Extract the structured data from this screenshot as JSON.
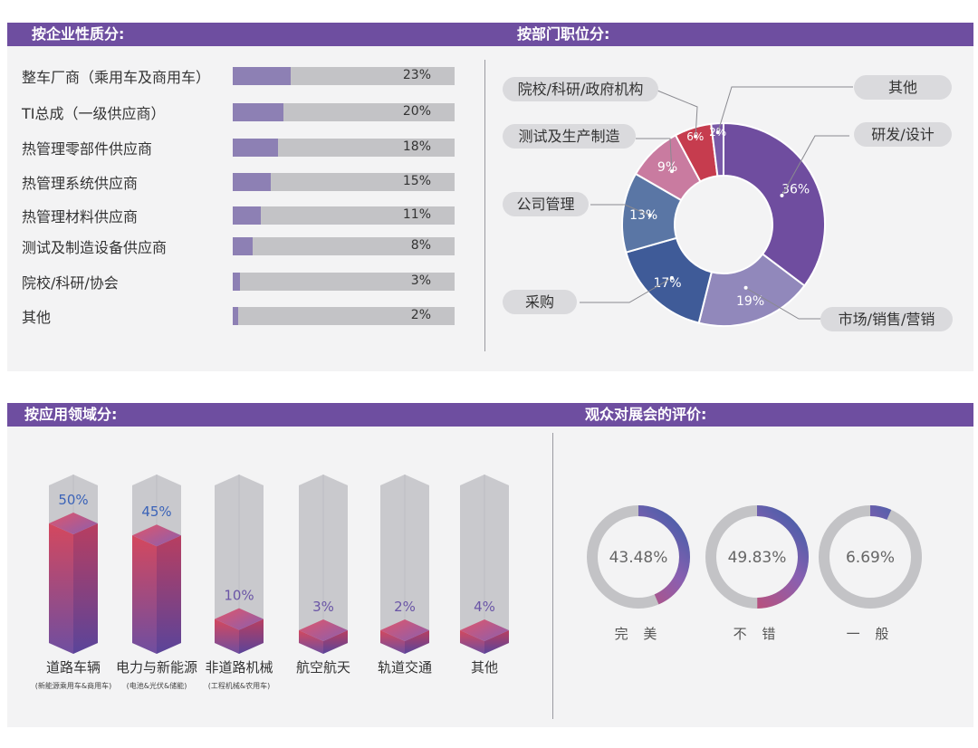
{
  "colors": {
    "header": "#6e4ea0",
    "panel": "#f3f3f4",
    "bar_fill": "#8d80b4",
    "bar_track": "#c3c3c6",
    "ring_track": "#c3c3c6"
  },
  "sections": {
    "enterprise": "按企业性质分:",
    "department": "按部门职位分:",
    "application": "按应用领域分:",
    "evaluation": "观众对展会的评价:"
  },
  "chart_data": [
    {
      "type": "bar",
      "title": "按企业性质分:",
      "categories": [
        "整车厂商（乘用车及商用车）",
        "TI总成（一级供应商）",
        "热管理零部件供应商",
        "热管理系统供应商",
        "热管理材料供应商",
        "测试及制造设备供应商",
        "院校/科研/协会",
        "其他"
      ],
      "values": [
        23,
        20,
        18,
        15,
        11,
        8,
        3,
        2
      ],
      "value_labels": [
        "23%",
        "20%",
        "18%",
        "15%",
        "11%",
        "8%",
        "3%",
        "2%"
      ],
      "unit": "%",
      "orientation": "horizontal"
    },
    {
      "type": "pie",
      "title": "按部门职位分:",
      "donut": true,
      "categories": [
        "研发/设计",
        "市场/销售/营销",
        "采购",
        "公司管理",
        "测试及生产制造",
        "院校/科研/政府机构",
        "其他"
      ],
      "values": [
        36,
        19,
        17,
        13,
        9,
        6,
        2
      ],
      "value_labels": [
        "36%",
        "19%",
        "17%",
        "13%",
        "9%",
        "6%",
        "2%"
      ],
      "colors": [
        "#6f4d9f",
        "#9188bb",
        "#3f5b98",
        "#5a76a5",
        "#c97ba0",
        "#c63c4e",
        "#7a5aa8"
      ]
    },
    {
      "type": "bar",
      "title": "按应用领域分:",
      "categories": [
        "道路车辆",
        "电力与新能源",
        "非道路机械",
        "航空航天",
        "轨道交通",
        "其他"
      ],
      "subtitles": [
        "(新能源乘用车&商用车)",
        "(电池&光伏&储能)",
        "(工程机械&农用车)",
        "",
        "",
        ""
      ],
      "values": [
        50,
        45,
        10,
        3,
        2,
        4
      ],
      "value_labels": [
        "50%",
        "45%",
        "10%",
        "3%",
        "2%",
        "4%"
      ]
    },
    {
      "type": "pie",
      "title": "观众对展会的评价:",
      "donut": true,
      "categories": [
        "完美",
        "不错",
        "一般"
      ],
      "display_labels": [
        "完 美",
        "不 错",
        "一 般"
      ],
      "values": [
        43.48,
        49.83,
        6.69
      ],
      "value_labels": [
        "43.48%",
        "49.83%",
        "6.69%"
      ]
    }
  ]
}
